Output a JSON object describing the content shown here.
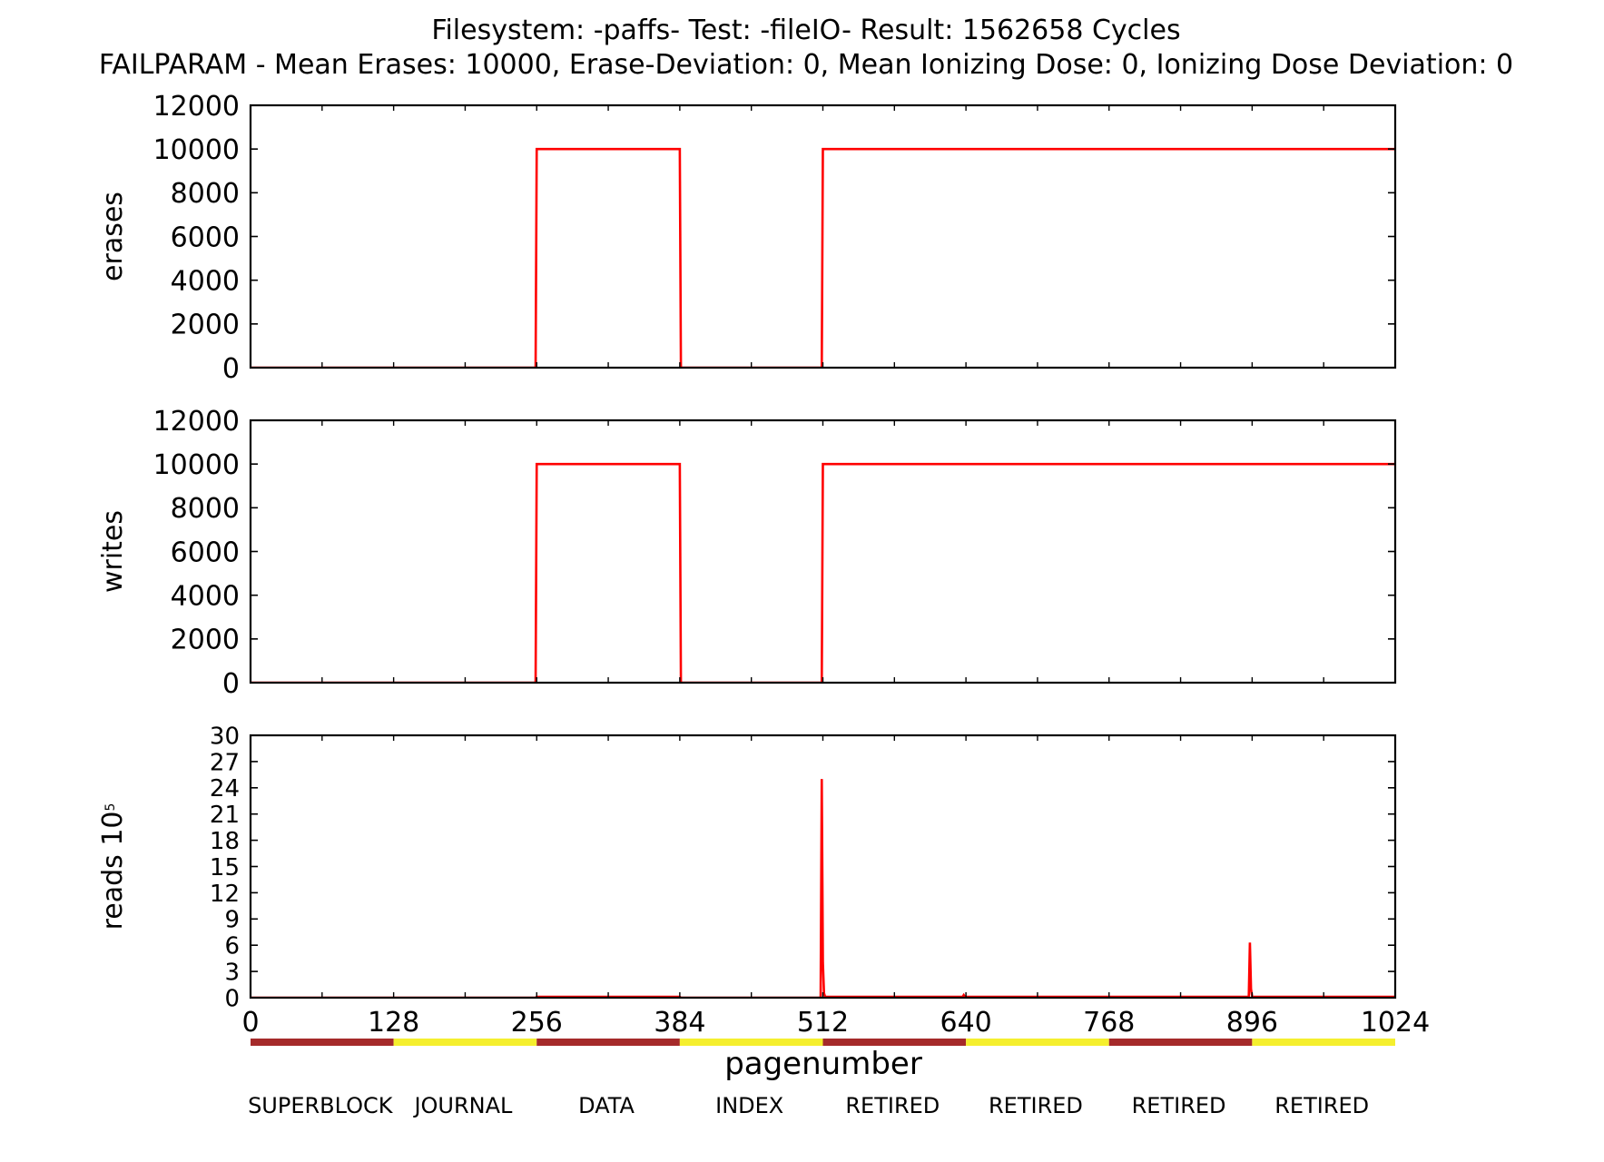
{
  "title_line1": "Filesystem: -paffs- Test: -fileIO- Result: 1562658 Cycles",
  "title_line2": "FAILPARAM - Mean Erases: 10000, Erase-Deviation: 0, Mean Ionizing Dose: 0, Ionizing Dose Deviation: 0",
  "xlabel": "pagenumber",
  "line_color": "#ff0000",
  "chart_data": [
    {
      "type": "line",
      "ylabel": "erases",
      "xlim": [
        0,
        1024
      ],
      "ylim": [
        0,
        12000
      ],
      "yticks": [
        0,
        2000,
        4000,
        6000,
        8000,
        10000,
        12000
      ],
      "x": [
        0,
        255,
        256,
        384,
        385,
        511,
        512,
        1024
      ],
      "y": [
        0,
        0,
        10000,
        10000,
        0,
        0,
        10000,
        10000
      ]
    },
    {
      "type": "line",
      "ylabel": "writes",
      "xlim": [
        0,
        1024
      ],
      "ylim": [
        0,
        12000
      ],
      "yticks": [
        0,
        2000,
        4000,
        6000,
        8000,
        10000,
        12000
      ],
      "x": [
        0,
        255,
        256,
        384,
        385,
        511,
        512,
        1024
      ],
      "y": [
        0,
        0,
        10000,
        10000,
        0,
        0,
        10000,
        10000
      ]
    },
    {
      "type": "line",
      "ylabel": "reads 10",
      "ylabel_exponent": "5",
      "xlim": [
        0,
        1024
      ],
      "ylim": [
        0,
        30
      ],
      "yticks": [
        0,
        3,
        6,
        9,
        12,
        15,
        18,
        21,
        24,
        27,
        30
      ],
      "xticks": [
        0,
        128,
        256,
        384,
        512,
        640,
        768,
        896,
        1024
      ],
      "x": [
        0,
        255,
        256,
        384,
        385,
        510,
        511,
        512,
        513,
        514,
        637,
        638,
        639,
        640,
        893,
        894,
        895,
        896,
        897,
        1024
      ],
      "y": [
        0,
        0,
        0.1,
        0.1,
        0,
        0,
        25,
        4,
        0.5,
        0.1,
        0.1,
        0.3,
        0.1,
        0.1,
        0.1,
        6.3,
        1,
        0.1,
        0.1,
        0.1
      ]
    }
  ],
  "regions": {
    "colors": [
      "#a52a2a",
      "#f5ef2e"
    ],
    "items": [
      {
        "label": "SUPERBLOCK",
        "start": 0,
        "end": 128,
        "color_index": 0
      },
      {
        "label": "JOURNAL",
        "start": 128,
        "end": 256,
        "color_index": 1
      },
      {
        "label": "DATA",
        "start": 256,
        "end": 384,
        "color_index": 0
      },
      {
        "label": "INDEX",
        "start": 384,
        "end": 512,
        "color_index": 1
      },
      {
        "label": "RETIRED",
        "start": 512,
        "end": 640,
        "color_index": 0
      },
      {
        "label": "RETIRED",
        "start": 640,
        "end": 768,
        "color_index": 1
      },
      {
        "label": "RETIRED",
        "start": 768,
        "end": 896,
        "color_index": 0
      },
      {
        "label": "RETIRED",
        "start": 896,
        "end": 1024,
        "color_index": 1
      }
    ]
  }
}
